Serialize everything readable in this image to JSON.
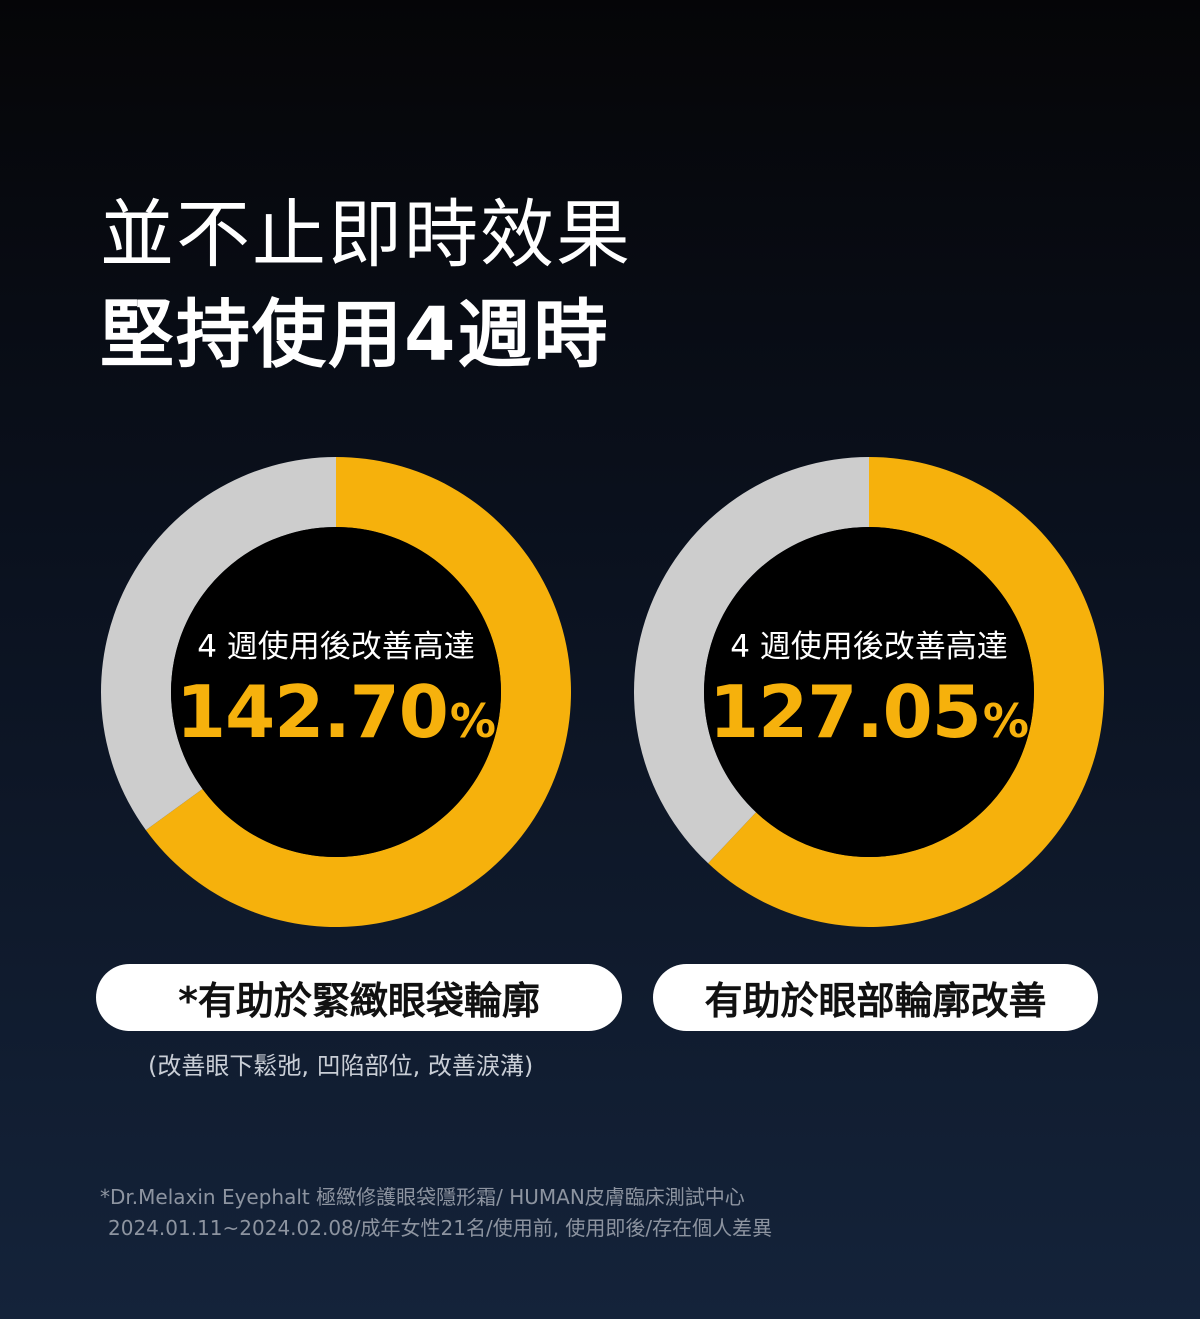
{
  "headline": {
    "line1": "並不止即時效果",
    "line2": "堅持使用4週時"
  },
  "colors": {
    "accent": "#f6b10c",
    "remainder": "#cdcdcd",
    "center": "#000000"
  },
  "chart_data": [
    {
      "type": "pie",
      "style": "donut",
      "caption": "4 週使用後改善高達",
      "value_text": "142.70",
      "unit": "%",
      "slices": [
        {
          "name": "",
          "share": 0.65,
          "color": "#f6b10c"
        },
        {
          "name": "",
          "share": 0.35,
          "color": "#cdcdcd"
        }
      ],
      "label": "*有助於緊緻眼袋輪廓",
      "note": "(改善眼下鬆弛, 凹陷部位, 改善淚溝)"
    },
    {
      "type": "pie",
      "style": "donut",
      "caption": "4 週使用後改善高達",
      "value_text": "127.05",
      "unit": "%",
      "slices": [
        {
          "name": "",
          "share": 0.62,
          "color": "#f6b10c"
        },
        {
          "name": "",
          "share": 0.38,
          "color": "#cdcdcd"
        }
      ],
      "label": "有助於眼部輪廓改善",
      "note": ""
    }
  ],
  "footnote": {
    "line1": "*Dr.Melaxin Eyephalt 極緻修護眼袋隱形霜/ HUMAN皮膚臨床測試中心",
    "line2": "2024.01.11~2024.02.08/成年女性21名/使用前, 使用即後/存在個人差異"
  }
}
